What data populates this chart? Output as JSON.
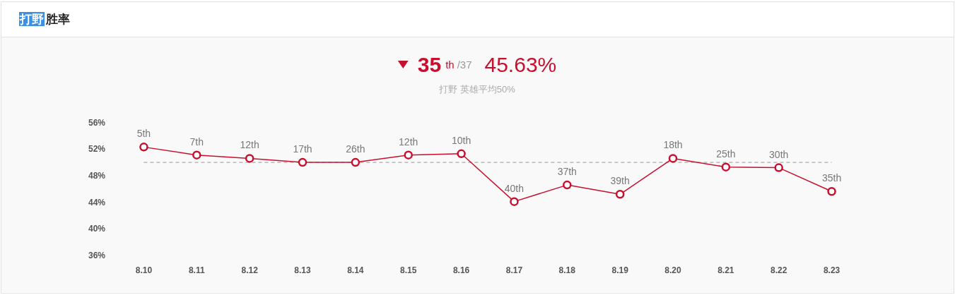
{
  "chart_data": {
    "type": "line",
    "title": "打野 胜率",
    "subtitle": "打野 英雄平均50%",
    "categories": [
      "8.10",
      "8.11",
      "8.12",
      "8.13",
      "8.14",
      "8.15",
      "8.16",
      "8.17",
      "8.18",
      "8.19",
      "8.20",
      "8.21",
      "8.22",
      "8.23"
    ],
    "series": [
      {
        "color": "#c8102e",
        "values": [
          52.3,
          51.1,
          50.6,
          50.0,
          50.0,
          51.1,
          51.3,
          44.1,
          46.6,
          45.2,
          50.6,
          49.3,
          49.2,
          45.63
        ]
      }
    ],
    "ylim": [
      36,
      56
    ],
    "yticks": [
      {
        "value": 36,
        "label": "36%"
      },
      {
        "value": 40,
        "label": "40%"
      },
      {
        "value": 44,
        "label": "44%"
      },
      {
        "value": 48,
        "label": "48%"
      },
      {
        "value": 52,
        "label": "52%"
      },
      {
        "value": 56,
        "label": "56%"
      }
    ],
    "ref_lines": [
      {
        "axis": "y",
        "value": 50,
        "color": "#aaaaaa",
        "line_style": "dashed"
      }
    ],
    "marker": "circle",
    "line_style": "solid",
    "grid": false,
    "annotations": [
      "35",
      "th",
      "/37",
      "45.63%",
      {
        "text": "5th",
        "x": "8.10",
        "y": 52.3
      },
      {
        "text": "7th",
        "x": "8.11",
        "y": 51.1
      },
      {
        "text": "12th",
        "x": "8.12",
        "y": 50.6
      },
      {
        "text": "17th",
        "x": "8.13",
        "y": 50.0
      },
      {
        "text": "26th",
        "x": "8.14",
        "y": 50.0
      },
      {
        "text": "12th",
        "x": "8.15",
        "y": 51.1
      },
      {
        "text": "10th",
        "x": "8.16",
        "y": 51.3
      },
      {
        "text": "40th",
        "x": "8.17",
        "y": 44.1
      },
      {
        "text": "37th",
        "x": "8.18",
        "y": 46.6
      },
      {
        "text": "39th",
        "x": "8.19",
        "y": 45.2
      },
      {
        "text": "18th",
        "x": "8.20",
        "y": 50.6
      },
      {
        "text": "25th",
        "x": "8.21",
        "y": 49.3
      },
      {
        "text": "30th",
        "x": "8.22",
        "y": 49.2
      },
      {
        "text": "35th",
        "x": "8.23",
        "y": 45.63
      }
    ]
  }
}
